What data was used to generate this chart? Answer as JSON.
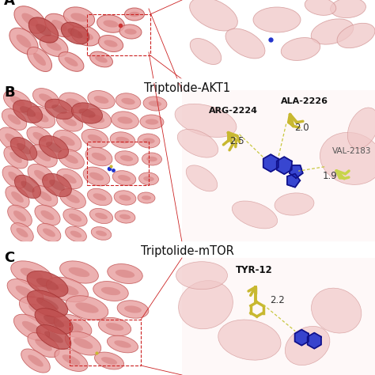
{
  "caption_AKT1": "Triptolide-AKT1",
  "caption_mTOR": "Triptolide-mTOR",
  "label_A": "A",
  "label_B": "B",
  "label_C": "C",
  "panel_bg": "#ffffff",
  "label_fontsize": 13,
  "caption_fontsize": 10.5,
  "protein_dark": "#a03030",
  "protein_mid": "#c05050",
  "protein_light": "#e8a0a0",
  "protein_vlight": "#f0c8c8",
  "ligand_blue": "#2233cc",
  "ligand_blue_dark": "#111188",
  "ligand_yellow": "#c8b830",
  "ligand_yellow_light": "#d4cc70",
  "highlight_green": "#c8d44a",
  "highlight_green_dark": "#a0b020",
  "dash_color": "#cc2222",
  "distance_color": "#c8c840",
  "text_dark": "#111111",
  "text_label": "#333300",
  "panel_b_bg": "#fdf5f5",
  "panel_c_bg": "#fdf5f5",
  "zoom_line_color": "#cc2222"
}
